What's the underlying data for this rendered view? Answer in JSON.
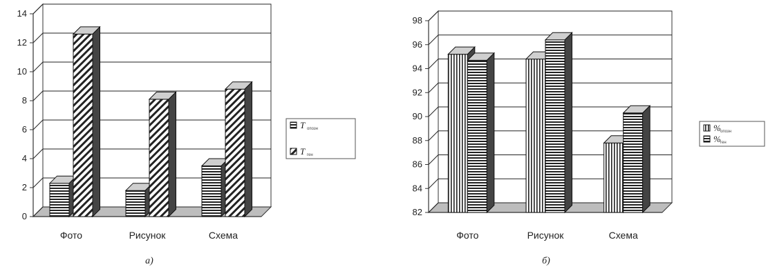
{
  "chart_data": [
    {
      "type": "bar",
      "caption": "а)",
      "categories": [
        "Фото",
        "Рисунок",
        "Схема"
      ],
      "ylim": [
        0,
        14
      ],
      "yticks": [
        0,
        2,
        4,
        6,
        8,
        10,
        12,
        14
      ],
      "grid": true,
      "legend_position": "right",
      "series": [
        {
          "name": "T",
          "subscript": "опозн",
          "pattern": "hstripe",
          "values": [
            2.3,
            1.8,
            3.5
          ]
        },
        {
          "name": "T",
          "subscript": "ген",
          "pattern": "diag",
          "values": [
            12.6,
            8.1,
            8.8
          ]
        }
      ]
    },
    {
      "type": "bar",
      "caption": "б)",
      "categories": [
        "Фото",
        "Рисунок",
        "Схема"
      ],
      "ylim": [
        82,
        98
      ],
      "yticks": [
        82,
        84,
        86,
        88,
        90,
        92,
        94,
        96,
        98
      ],
      "grid": true,
      "legend_position": "right",
      "series": [
        {
          "name": "%",
          "subscript": "опозн",
          "pattern": "vstripe",
          "values": [
            95.2,
            94.8,
            87.8
          ]
        },
        {
          "name": "%",
          "subscript": "ген",
          "pattern": "hstripe",
          "values": [
            94.7,
            96.4,
            90.3
          ]
        }
      ]
    }
  ],
  "colors": {
    "axis": "#333333",
    "grid": "#222222",
    "face": "#ffffff",
    "side": "#444444",
    "top": "#cfcfcf"
  }
}
